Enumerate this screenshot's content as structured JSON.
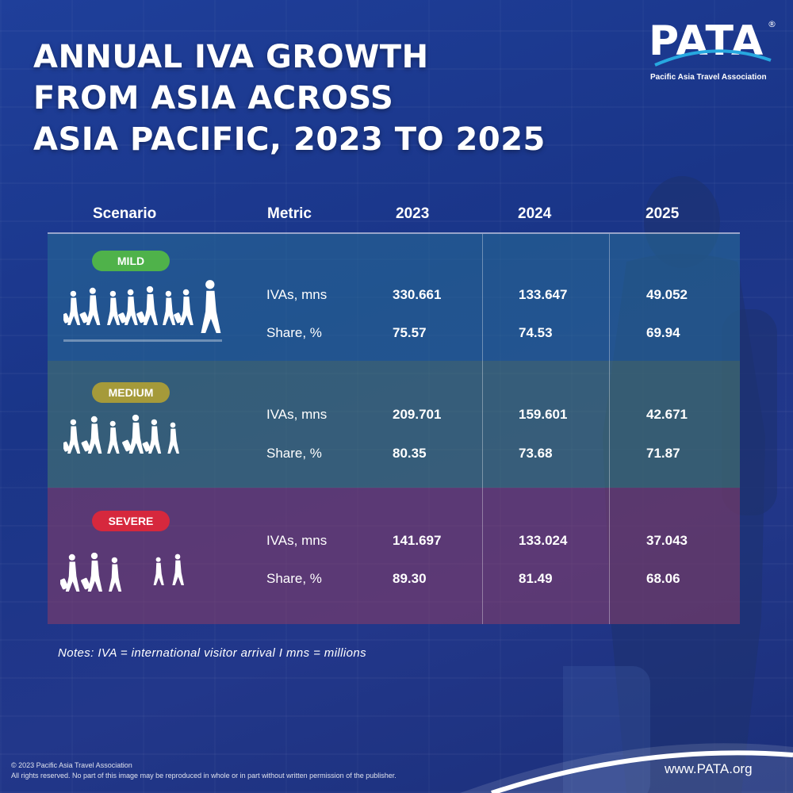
{
  "title_lines": [
    "ANNUAL IVA GROWTH",
    "FROM ASIA ACROSS",
    "ASIA PACIFIC, 2023 TO 2025"
  ],
  "logo": {
    "word": "PATA",
    "reg": "®",
    "subtitle": "Pacific Asia Travel Association"
  },
  "colors": {
    "mild": "#4fb24a",
    "medium": "#a59a3a",
    "severe": "#d6283d"
  },
  "chart_data": {
    "type": "table",
    "title": "ANNUAL IVA GROWTH FROM ASIA ACROSS ASIA PACIFIC, 2023 TO 2025",
    "columns": [
      "Scenario",
      "Metric",
      "2023",
      "2024",
      "2025"
    ],
    "rows": [
      {
        "scenario": "MILD",
        "metric": "IVAs, mns",
        "values": [
          "330.661",
          "133.647",
          "49.052"
        ]
      },
      {
        "scenario": "MILD",
        "metric": "Share, %",
        "values": [
          "75.57",
          "74.53",
          "69.94"
        ]
      },
      {
        "scenario": "MEDIUM",
        "metric": "IVAs, mns",
        "values": [
          "209.701",
          "159.601",
          "42.671"
        ]
      },
      {
        "scenario": "MEDIUM",
        "metric": "Share, %",
        "values": [
          "80.35",
          "73.68",
          "71.87"
        ]
      },
      {
        "scenario": "SEVERE",
        "metric": "IVAs, mns",
        "values": [
          "141.697",
          "133.024",
          "37.043"
        ]
      },
      {
        "scenario": "SEVERE",
        "metric": "Share, %",
        "values": [
          "89.30",
          "81.49",
          "68.06"
        ]
      }
    ]
  },
  "notes": "Notes: IVA = international visitor arrival I mns = millions",
  "copyright_lines": [
    "© 2023 Pacific Asia Travel Association",
    "All rights reserved. No part of this image may be reproduced in whole or in part without written permission of the publisher."
  ],
  "website": "www.PATA.org"
}
